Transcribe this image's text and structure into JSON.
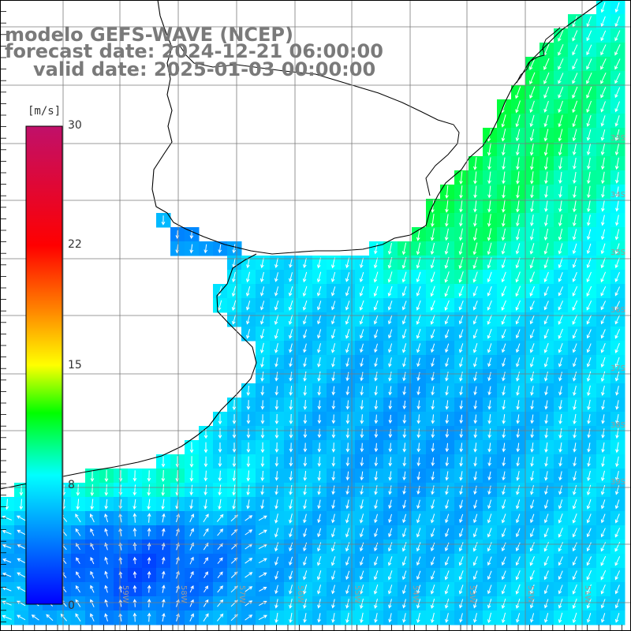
{
  "title": {
    "model": "modelo GEFS-WAVE (NCEP)",
    "forecast": "forecast date: 2024-12-21 06:00:00",
    "valid": "valid date: 2025-01-03 00:00:00"
  },
  "colorbar": {
    "unit": "[m/s]",
    "ticks": [
      "30",
      "22",
      "15",
      "8",
      "0"
    ],
    "colors": [
      "#0000ff",
      "#00aaff",
      "#00ffff",
      "#00ff00",
      "#ffff00",
      "#ff8000",
      "#ff0000",
      "#c0106a"
    ]
  },
  "grid": {
    "lat_labels": [
      "33S",
      "34S",
      "35S",
      "36S",
      "37S",
      "38S",
      "39S"
    ],
    "lon_labels": [
      "59W",
      "58W",
      "57W",
      "56W",
      "55W",
      "54W",
      "53W",
      "52W",
      "51W"
    ]
  },
  "colors": {
    "land": "#ffffff",
    "coast": "#000000",
    "grid": "#7a7a7a",
    "arrow": "#ffffff",
    "title": "#7a7a7a"
  }
}
